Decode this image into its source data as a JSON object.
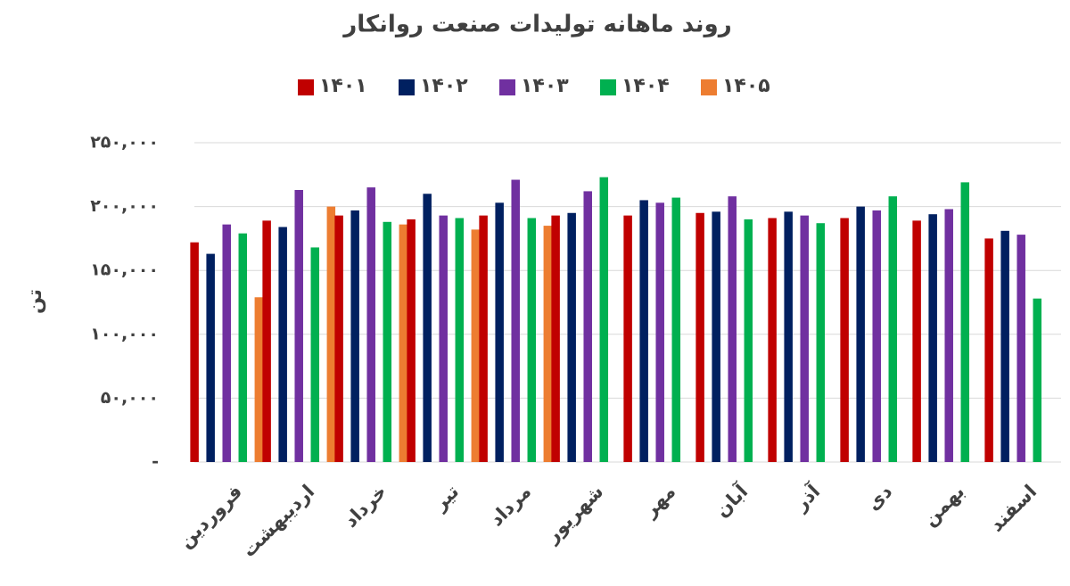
{
  "chart_data": {
    "type": "bar",
    "title": "روند ماهانه تولیدات صنعت روانکار",
    "y_label": "تن",
    "categories": [
      "فروردین",
      "اردیبهشت",
      "خرداد",
      "تیر",
      "مرداد",
      "شهریور",
      "مهر",
      "آبان",
      "آذر",
      "دی",
      "بهمن",
      "اسفند"
    ],
    "series": [
      {
        "name": "۱۴۰۱",
        "color": "#c00000",
        "values": [
          172000,
          189000,
          193000,
          190000,
          193000,
          193000,
          193000,
          195000,
          191000,
          191000,
          189000,
          175000
        ]
      },
      {
        "name": "۱۴۰۲",
        "color": "#002060",
        "values": [
          163000,
          184000,
          197000,
          210000,
          203000,
          195000,
          205000,
          196000,
          196000,
          200000,
          194000,
          181000
        ]
      },
      {
        "name": "۱۴۰۳",
        "color": "#7030a0",
        "values": [
          186000,
          213000,
          215000,
          193000,
          221000,
          212000,
          203000,
          208000,
          193000,
          197000,
          198000,
          178000
        ]
      },
      {
        "name": "۱۴۰۴",
        "color": "#00b050",
        "values": [
          179000,
          168000,
          188000,
          191000,
          191000,
          223000,
          207000,
          190000,
          187000,
          208000,
          219000,
          128000
        ]
      },
      {
        "name": "۱۴۰۵",
        "color": "#ed7d31",
        "values": [
          129000,
          200000,
          186000,
          182000,
          185000,
          null,
          null,
          null,
          null,
          null,
          null,
          null
        ]
      }
    ],
    "ylim": [
      0,
      250000
    ],
    "yticks": [
      {
        "value": 0,
        "label": "-"
      },
      {
        "value": 50000,
        "label": "۵۰,۰۰۰"
      },
      {
        "value": 100000,
        "label": "۱۰۰,۰۰۰"
      },
      {
        "value": 150000,
        "label": "۱۵۰,۰۰۰"
      },
      {
        "value": 200000,
        "label": "۲۰۰,۰۰۰"
      },
      {
        "value": 250000,
        "label": "۲۵۰,۰۰۰"
      }
    ],
    "grid": true
  }
}
